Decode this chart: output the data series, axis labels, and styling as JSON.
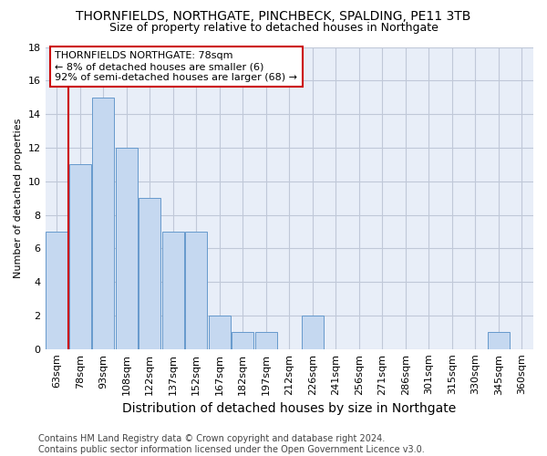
{
  "title": "THORNFIELDS, NORTHGATE, PINCHBECK, SPALDING, PE11 3TB",
  "subtitle": "Size of property relative to detached houses in Northgate",
  "xlabel": "Distribution of detached houses by size in Northgate",
  "ylabel": "Number of detached properties",
  "categories": [
    "63sqm",
    "78sqm",
    "93sqm",
    "108sqm",
    "122sqm",
    "137sqm",
    "152sqm",
    "167sqm",
    "182sqm",
    "197sqm",
    "212sqm",
    "226sqm",
    "241sqm",
    "256sqm",
    "271sqm",
    "286sqm",
    "301sqm",
    "315sqm",
    "330sqm",
    "345sqm",
    "360sqm"
  ],
  "values": [
    7,
    11,
    15,
    12,
    9,
    7,
    7,
    2,
    1,
    1,
    0,
    2,
    0,
    0,
    0,
    0,
    0,
    0,
    0,
    1,
    0
  ],
  "highlight_index": 1,
  "bar_color": "#c5d8f0",
  "bar_edge_color": "#6699cc",
  "highlight_line_color": "#cc0000",
  "ylim": [
    0,
    18
  ],
  "yticks": [
    0,
    2,
    4,
    6,
    8,
    10,
    12,
    14,
    16,
    18
  ],
  "annotation_text": "THORNFIELDS NORTHGATE: 78sqm\n← 8% of detached houses are smaller (6)\n92% of semi-detached houses are larger (68) →",
  "annotation_box_color": "#ffffff",
  "annotation_box_edge": "#cc0000",
  "footnote": "Contains HM Land Registry data © Crown copyright and database right 2024.\nContains public sector information licensed under the Open Government Licence v3.0.",
  "background_color": "#ffffff",
  "plot_bg_color": "#e8eef8",
  "grid_color": "#c0c8d8",
  "title_fontsize": 10,
  "subtitle_fontsize": 9,
  "xlabel_fontsize": 10,
  "ylabel_fontsize": 8,
  "tick_fontsize": 8,
  "annotation_fontsize": 8,
  "footnote_fontsize": 7
}
